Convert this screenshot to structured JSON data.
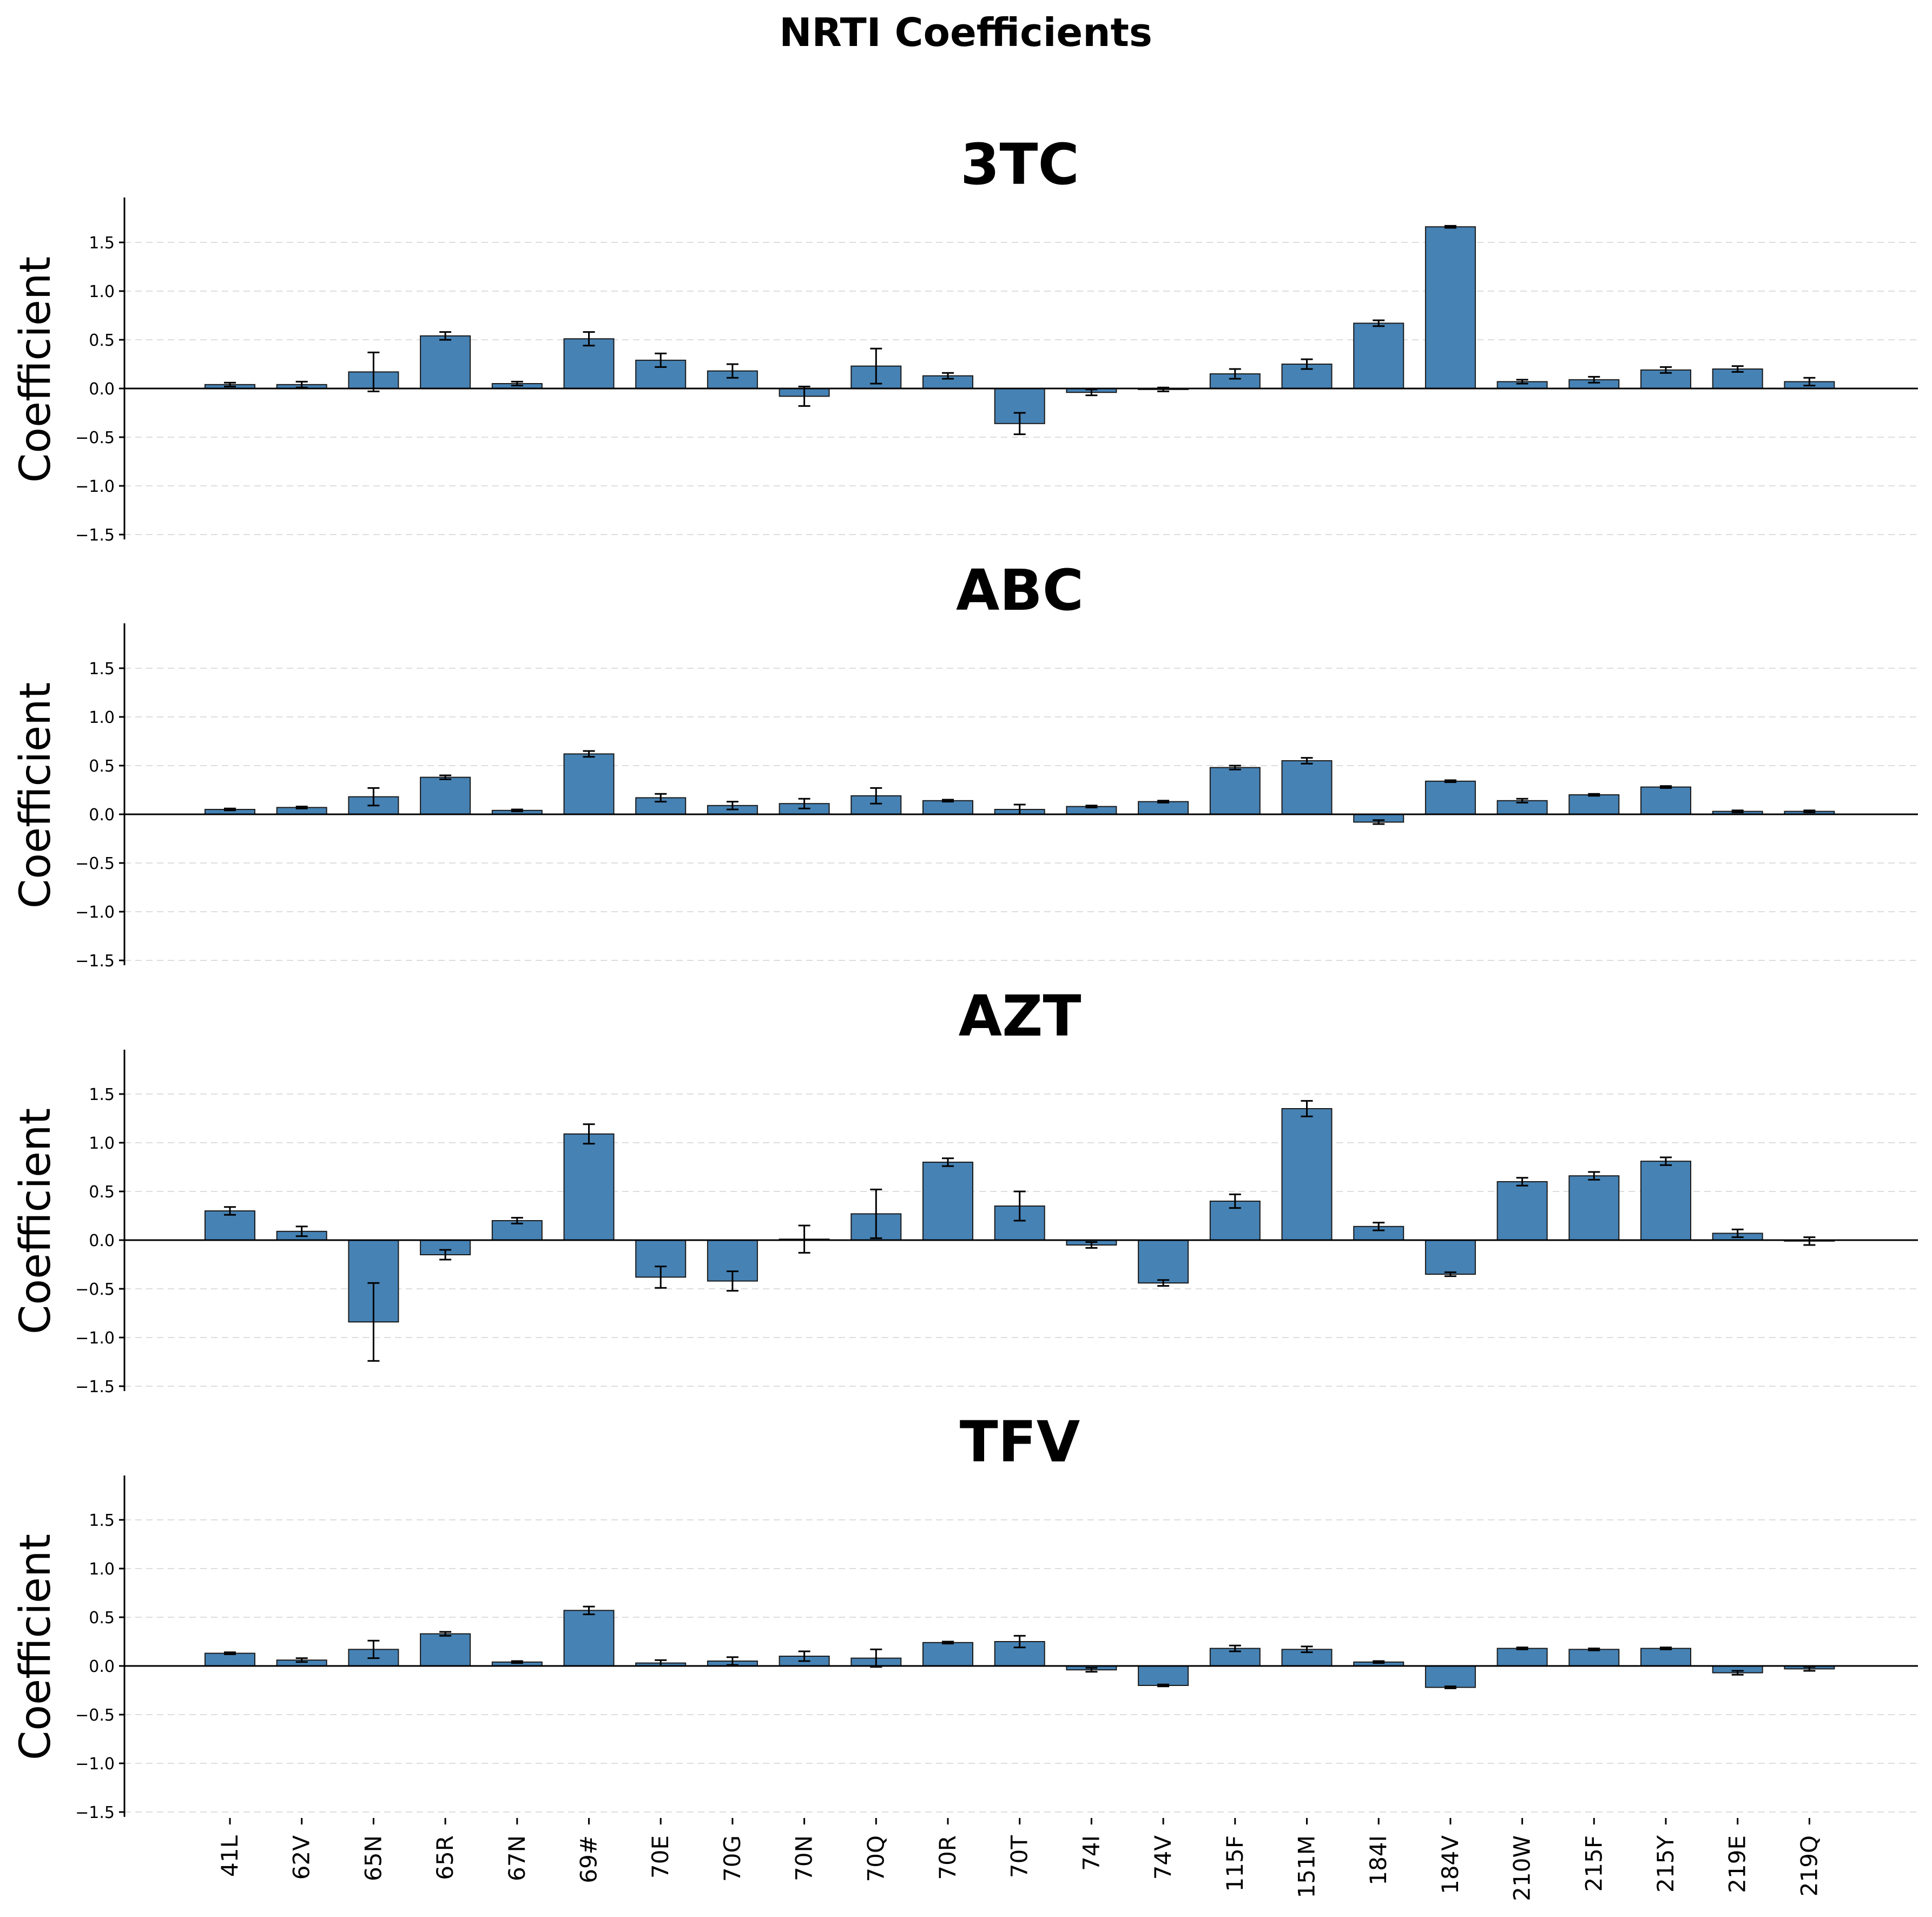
{
  "chart_data": {
    "type": "bar",
    "title": "NRTI Coefficients",
    "ylabel": "Coefficient",
    "ylim": [
      -1.55,
      2.0
    ],
    "yticks": [
      1.5,
      1.0,
      0.5,
      0.0,
      -0.5,
      -1.0,
      -1.5
    ],
    "ytick_labels": [
      "1.5",
      "1.0",
      "0.5",
      "0.0",
      "−0.5",
      "−1.0",
      "−1.5"
    ],
    "grid": "horizontal dashed",
    "bar_color": "#4682b4",
    "categories": [
      "41L",
      "62V",
      "65N",
      "65R",
      "67N",
      "69#",
      "70E",
      "70G",
      "70N",
      "70Q",
      "70R",
      "70T",
      "74I",
      "74V",
      "115F",
      "151M",
      "184I",
      "184V",
      "210W",
      "215F",
      "215Y",
      "219E",
      "219Q"
    ],
    "panels": [
      {
        "title": "3TC",
        "values": [
          0.04,
          0.04,
          0.17,
          0.54,
          0.05,
          0.51,
          0.29,
          0.18,
          -0.08,
          0.23,
          0.13,
          -0.36,
          -0.04,
          -0.01,
          0.15,
          0.25,
          0.67,
          1.66,
          0.07,
          0.09,
          0.19,
          0.2,
          0.07
        ],
        "errors": [
          0.02,
          0.03,
          0.2,
          0.04,
          0.02,
          0.07,
          0.07,
          0.07,
          0.1,
          0.18,
          0.03,
          0.11,
          0.03,
          0.02,
          0.05,
          0.05,
          0.03,
          0.01,
          0.02,
          0.03,
          0.03,
          0.03,
          0.04
        ]
      },
      {
        "title": "ABC",
        "values": [
          0.05,
          0.07,
          0.18,
          0.38,
          0.04,
          0.62,
          0.17,
          0.09,
          0.11,
          0.19,
          0.14,
          0.05,
          0.08,
          0.13,
          0.48,
          0.55,
          -0.08,
          0.34,
          0.14,
          0.2,
          0.28,
          0.03,
          0.03
        ],
        "errors": [
          0.01,
          0.01,
          0.09,
          0.02,
          0.01,
          0.03,
          0.04,
          0.04,
          0.05,
          0.08,
          0.01,
          0.05,
          0.01,
          0.01,
          0.02,
          0.03,
          0.02,
          0.01,
          0.02,
          0.01,
          0.01,
          0.01,
          0.01
        ]
      },
      {
        "title": "AZT",
        "values": [
          0.3,
          0.09,
          -0.84,
          -0.15,
          0.2,
          1.09,
          -0.38,
          -0.42,
          0.01,
          0.27,
          0.8,
          0.35,
          -0.05,
          -0.44,
          0.4,
          1.35,
          0.14,
          -0.35,
          0.6,
          0.66,
          0.81,
          0.07,
          -0.01
        ],
        "errors": [
          0.04,
          0.05,
          0.4,
          0.05,
          0.03,
          0.1,
          0.11,
          0.1,
          0.14,
          0.25,
          0.04,
          0.15,
          0.03,
          0.03,
          0.07,
          0.08,
          0.04,
          0.02,
          0.04,
          0.04,
          0.04,
          0.04,
          0.04
        ]
      },
      {
        "title": "TFV",
        "values": [
          0.13,
          0.06,
          0.17,
          0.33,
          0.04,
          0.57,
          0.03,
          0.05,
          0.1,
          0.08,
          0.24,
          0.25,
          -0.04,
          -0.2,
          0.18,
          0.17,
          0.04,
          -0.22,
          0.18,
          0.17,
          0.18,
          -0.07,
          -0.03
        ],
        "errors": [
          0.01,
          0.02,
          0.09,
          0.02,
          0.01,
          0.04,
          0.03,
          0.04,
          0.05,
          0.09,
          0.01,
          0.06,
          0.02,
          0.01,
          0.03,
          0.03,
          0.01,
          0.01,
          0.01,
          0.01,
          0.01,
          0.02,
          0.02
        ]
      }
    ]
  }
}
